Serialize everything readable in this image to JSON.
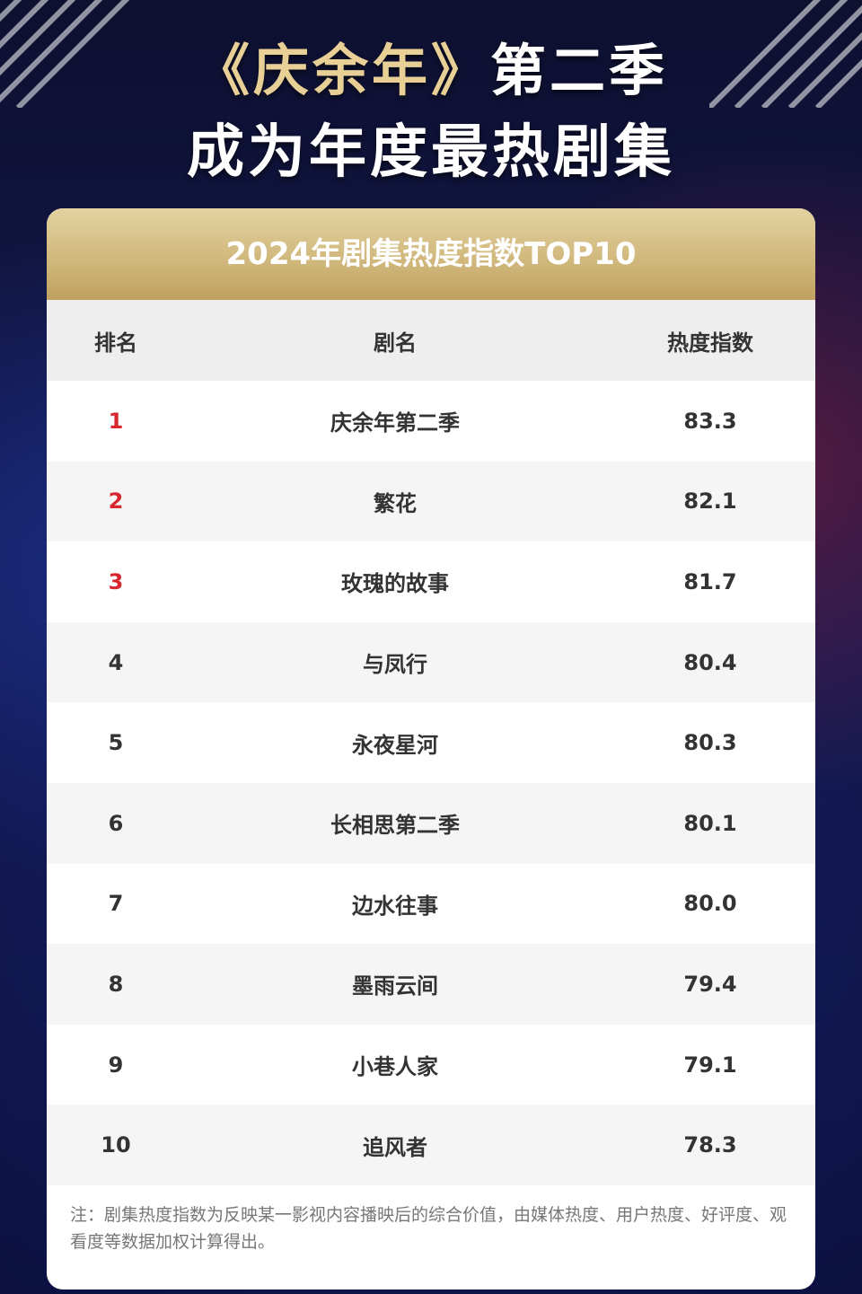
{
  "headline": {
    "line1_gold": "《庆余年》",
    "line1_rest": "第二季",
    "line2": "成为年度最热剧集"
  },
  "card": {
    "title": "2024年剧集热度指数TOP10",
    "columns": [
      "排名",
      "剧名",
      "热度指数"
    ],
    "rows": [
      {
        "rank": "1",
        "name": "庆余年第二季",
        "score": "83.3"
      },
      {
        "rank": "2",
        "name": "繁花",
        "score": "82.1"
      },
      {
        "rank": "3",
        "name": "玫瑰的故事",
        "score": "81.7"
      },
      {
        "rank": "4",
        "name": "与凤行",
        "score": "80.4"
      },
      {
        "rank": "5",
        "name": "永夜星河",
        "score": "80.3"
      },
      {
        "rank": "6",
        "name": "长相思第二季",
        "score": "80.1"
      },
      {
        "rank": "7",
        "name": "边水往事",
        "score": "80.0"
      },
      {
        "rank": "8",
        "name": "墨雨云间",
        "score": "79.4"
      },
      {
        "rank": "9",
        "name": "小巷人家",
        "score": "79.1"
      },
      {
        "rank": "10",
        "name": "追风者",
        "score": "78.3"
      }
    ],
    "note": "注：剧集热度指数为反映某一影视内容播映后的综合价值，由媒体热度、用户热度、好评度、观看度等数据加权计算得出。"
  },
  "colors": {
    "gold": "#cfb67a",
    "rank_highlight": "#d7262e",
    "background": "#0c1030"
  }
}
